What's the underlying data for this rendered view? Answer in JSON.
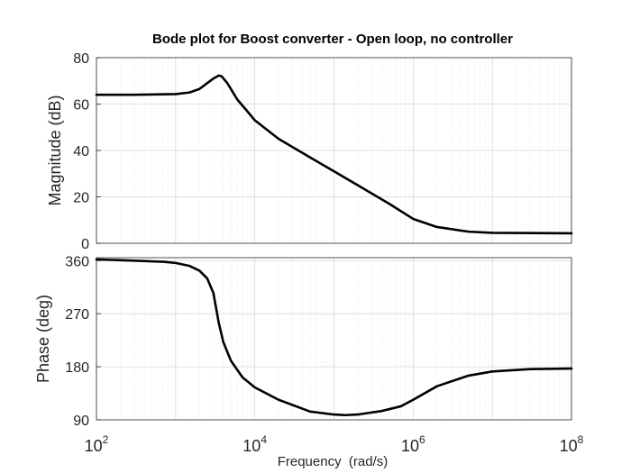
{
  "chart_data": {
    "type": "line",
    "title": "Bode plot for Boost converter - Open loop, no controller",
    "xlabel": "Frequency  (rad/s)",
    "xscale": "log",
    "xlim": [
      100,
      100000000
    ],
    "x_ticks": [
      {
        "base": "10",
        "exp": "2"
      },
      {
        "base": "10",
        "exp": "4"
      },
      {
        "base": "10",
        "exp": "6"
      },
      {
        "base": "10",
        "exp": "8"
      }
    ],
    "grid": true,
    "panels": [
      {
        "name": "magnitude",
        "ylabel": "Magnitude (dB)",
        "ylim": [
          0,
          80
        ],
        "y_ticks": [
          "0",
          "20",
          "40",
          "60",
          "80"
        ],
        "points": [
          [
            100,
            64
          ],
          [
            300,
            64
          ],
          [
            1000,
            64.3
          ],
          [
            1500,
            65
          ],
          [
            2000,
            66.5
          ],
          [
            2500,
            69
          ],
          [
            3000,
            71
          ],
          [
            3500,
            72.3
          ],
          [
            3800,
            72
          ],
          [
            4500,
            69
          ],
          [
            6000,
            62
          ],
          [
            8000,
            57
          ],
          [
            10000,
            53
          ],
          [
            20000,
            45
          ],
          [
            50000,
            37
          ],
          [
            100000,
            31
          ],
          [
            200000,
            25
          ],
          [
            500000,
            17
          ],
          [
            1000000,
            10.5
          ],
          [
            2000000,
            7
          ],
          [
            5000000,
            5
          ],
          [
            10000000,
            4.5
          ],
          [
            100000000,
            4.3
          ]
        ]
      },
      {
        "name": "phase",
        "ylabel": "Phase (deg)",
        "ylim": [
          90,
          365
        ],
        "y_ticks": [
          "90",
          "180",
          "270",
          "360"
        ],
        "points": [
          [
            100,
            362
          ],
          [
            300,
            360
          ],
          [
            700,
            358
          ],
          [
            1000,
            356
          ],
          [
            1500,
            351
          ],
          [
            2000,
            343
          ],
          [
            2500,
            330
          ],
          [
            3000,
            305
          ],
          [
            3500,
            255
          ],
          [
            4000,
            222
          ],
          [
            5000,
            190
          ],
          [
            7000,
            162
          ],
          [
            10000,
            145
          ],
          [
            20000,
            124
          ],
          [
            50000,
            104
          ],
          [
            100000,
            99
          ],
          [
            140000,
            98
          ],
          [
            200000,
            99
          ],
          [
            400000,
            105
          ],
          [
            700000,
            113
          ],
          [
            1000000,
            124
          ],
          [
            2000000,
            147
          ],
          [
            5000000,
            165
          ],
          [
            10000000,
            172
          ],
          [
            30000000,
            176
          ],
          [
            100000000,
            177
          ]
        ]
      }
    ]
  }
}
